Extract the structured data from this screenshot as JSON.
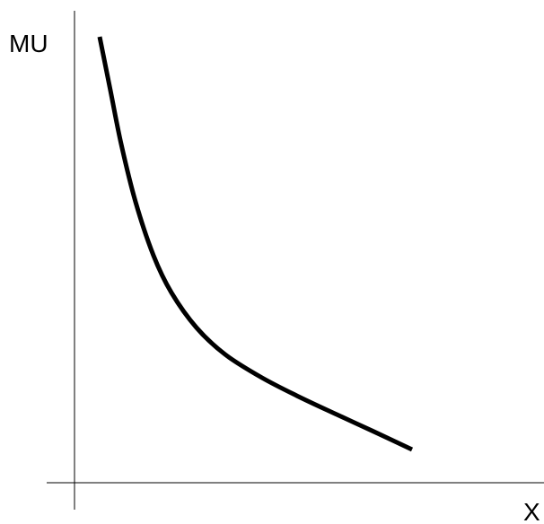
{
  "chart_data": {
    "type": "line",
    "title": "",
    "xlabel": "X",
    "ylabel": "MU",
    "grid": false,
    "legend": "none",
    "series": [
      {
        "color": "#000000",
        "x": [
          0.0,
          0.3,
          0.6,
          1.0,
          1.5,
          2.0,
          2.7,
          3.5,
          4.5,
          5.5,
          6.6,
          7.6,
          8.7
        ],
        "y": [
          10.0,
          8.7,
          7.4,
          6.0,
          4.7,
          3.8,
          2.95,
          2.3,
          1.75,
          1.3,
          0.85,
          0.45,
          0.0
        ]
      }
    ]
  }
}
